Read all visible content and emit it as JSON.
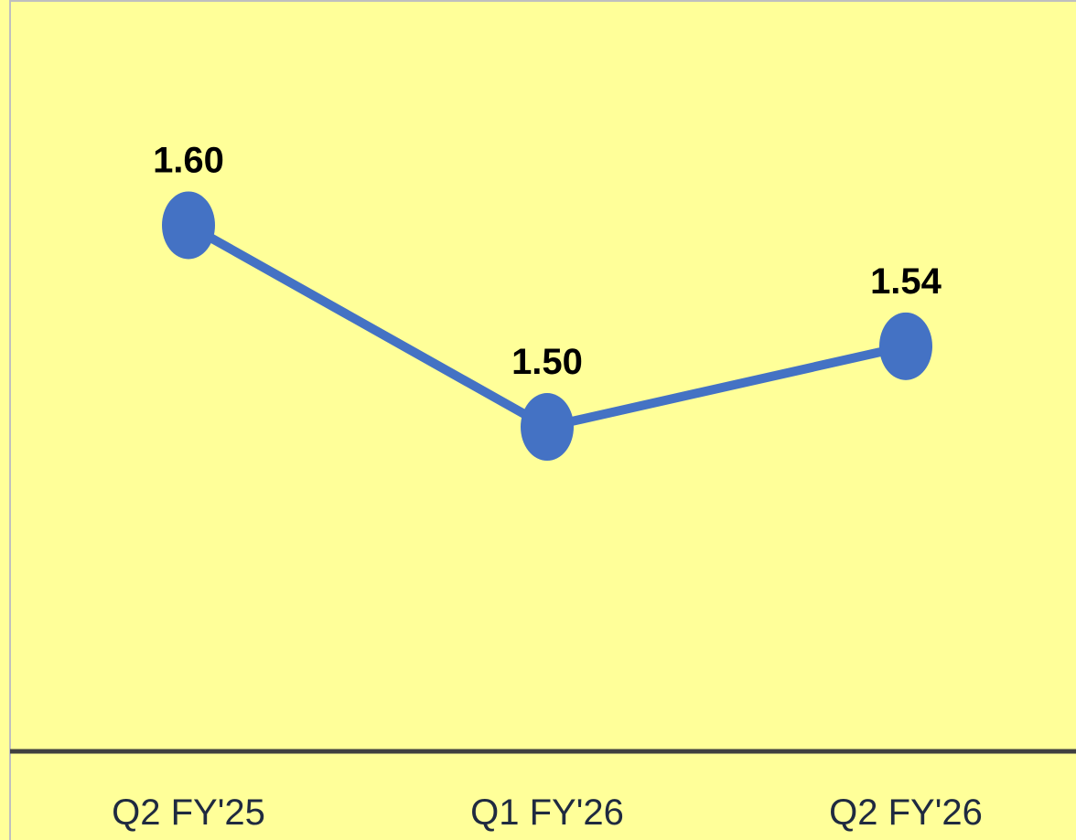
{
  "chart_data": {
    "type": "line",
    "categories": [
      "Q2 FY'25",
      "Q1 FY'26",
      "Q2 FY'26"
    ],
    "series": [
      {
        "values": [
          1.6,
          1.5,
          1.54
        ],
        "data_labels": [
          "1.60",
          "1.50",
          "1.54"
        ],
        "color": "#4472c4"
      }
    ],
    "ylim": [
      1.34,
      1.68
    ],
    "grid": false,
    "legend": "none",
    "title": "",
    "xlabel": "",
    "ylabel": ""
  },
  "colors": {
    "background": "#ffff99",
    "frame": "#bfbfbf",
    "axis": "#404040",
    "series": "#4472c4",
    "label": "#000000",
    "tick_text": "#1f2a40"
  }
}
